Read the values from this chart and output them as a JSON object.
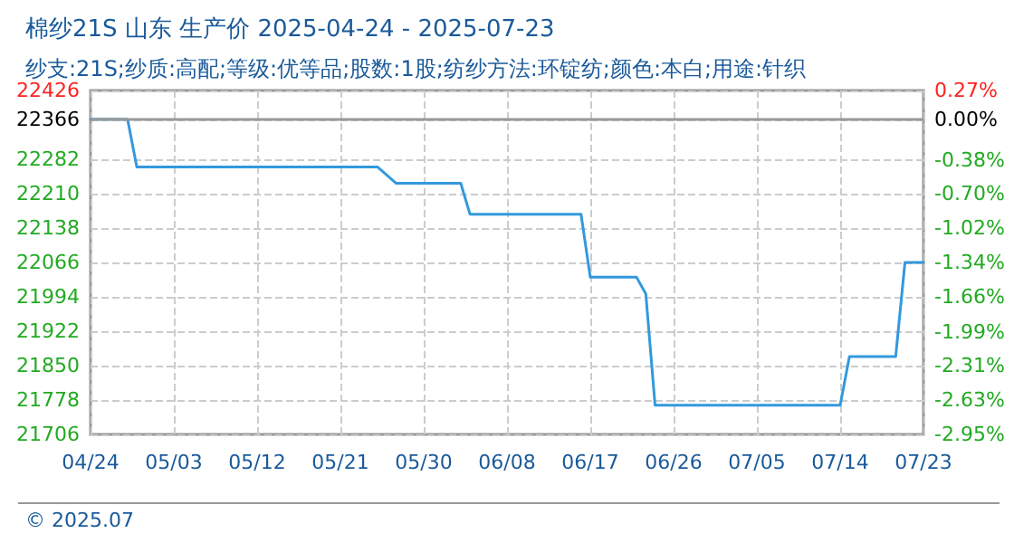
{
  "chart_data": {
    "type": "line",
    "title": "棉纱21S 山东 生产价 2025-04-24 - 2025-07-23",
    "subtitle": "纱支:21S;纱质:高配;等级:优等品;股数:1股;纺纱方法:环锭纺;颜色:本白;用途:针织",
    "annotations": [
      "© 2025.07"
    ],
    "x": [
      "2025-04-24",
      "2025-04-28",
      "2025-04-29",
      "2025-05-25",
      "2025-05-27",
      "2025-06-03",
      "2025-06-04",
      "2025-06-16",
      "2025-06-17",
      "2025-06-22",
      "2025-06-23",
      "2025-06-24",
      "2025-07-14",
      "2025-07-15",
      "2025-07-20",
      "2025-07-21",
      "2025-07-23"
    ],
    "series": [
      {
        "color": "#3399dd",
        "values": [
          22366,
          22366,
          22266,
          22266,
          22232,
          22232,
          22167,
          22167,
          22035,
          22035,
          22000,
          21767,
          21767,
          21869,
          21869,
          22066,
          22066
        ]
      }
    ],
    "xlim": [
      "2025-04-24",
      "2025-07-23"
    ],
    "xticks": [
      {
        "value": "2025-04-24",
        "label": "04/24"
      },
      {
        "value": "2025-05-03",
        "label": "05/03"
      },
      {
        "value": "2025-05-12",
        "label": "05/12"
      },
      {
        "value": "2025-05-21",
        "label": "05/21"
      },
      {
        "value": "2025-05-30",
        "label": "05/30"
      },
      {
        "value": "2025-06-08",
        "label": "06/08"
      },
      {
        "value": "2025-06-17",
        "label": "06/17"
      },
      {
        "value": "2025-06-26",
        "label": "06/26"
      },
      {
        "value": "2025-07-05",
        "label": "07/05"
      },
      {
        "value": "2025-07-14",
        "label": "07/14"
      },
      {
        "value": "2025-07-23",
        "label": "07/23"
      }
    ],
    "ylim": [
      21706,
      22426
    ],
    "yticks": [
      21706,
      21778,
      21850,
      21922,
      21994,
      22066,
      22138,
      22210,
      22282,
      22366,
      22426
    ],
    "y2lim": [
      -2.95,
      0.27
    ],
    "y2ticks": [
      {
        "value": -2.95,
        "label": "-2.95%"
      },
      {
        "value": -2.63,
        "label": "-2.63%"
      },
      {
        "value": -2.31,
        "label": "-2.31%"
      },
      {
        "value": -1.99,
        "label": "-1.99%"
      },
      {
        "value": -1.66,
        "label": "-1.66%"
      },
      {
        "value": -1.34,
        "label": "-1.34%"
      },
      {
        "value": -1.02,
        "label": "-1.02%"
      },
      {
        "value": -0.7,
        "label": "-0.70%"
      },
      {
        "value": -0.38,
        "label": "-0.38%"
      },
      {
        "value": 0,
        "label": "0.00%"
      },
      {
        "value": 0.27,
        "label": "0.27%"
      }
    ],
    "ref_lines": [
      {
        "axis": "y",
        "value": 22366,
        "color": "#999999"
      }
    ],
    "grid": true,
    "marker": "none",
    "line_style": "solid"
  }
}
